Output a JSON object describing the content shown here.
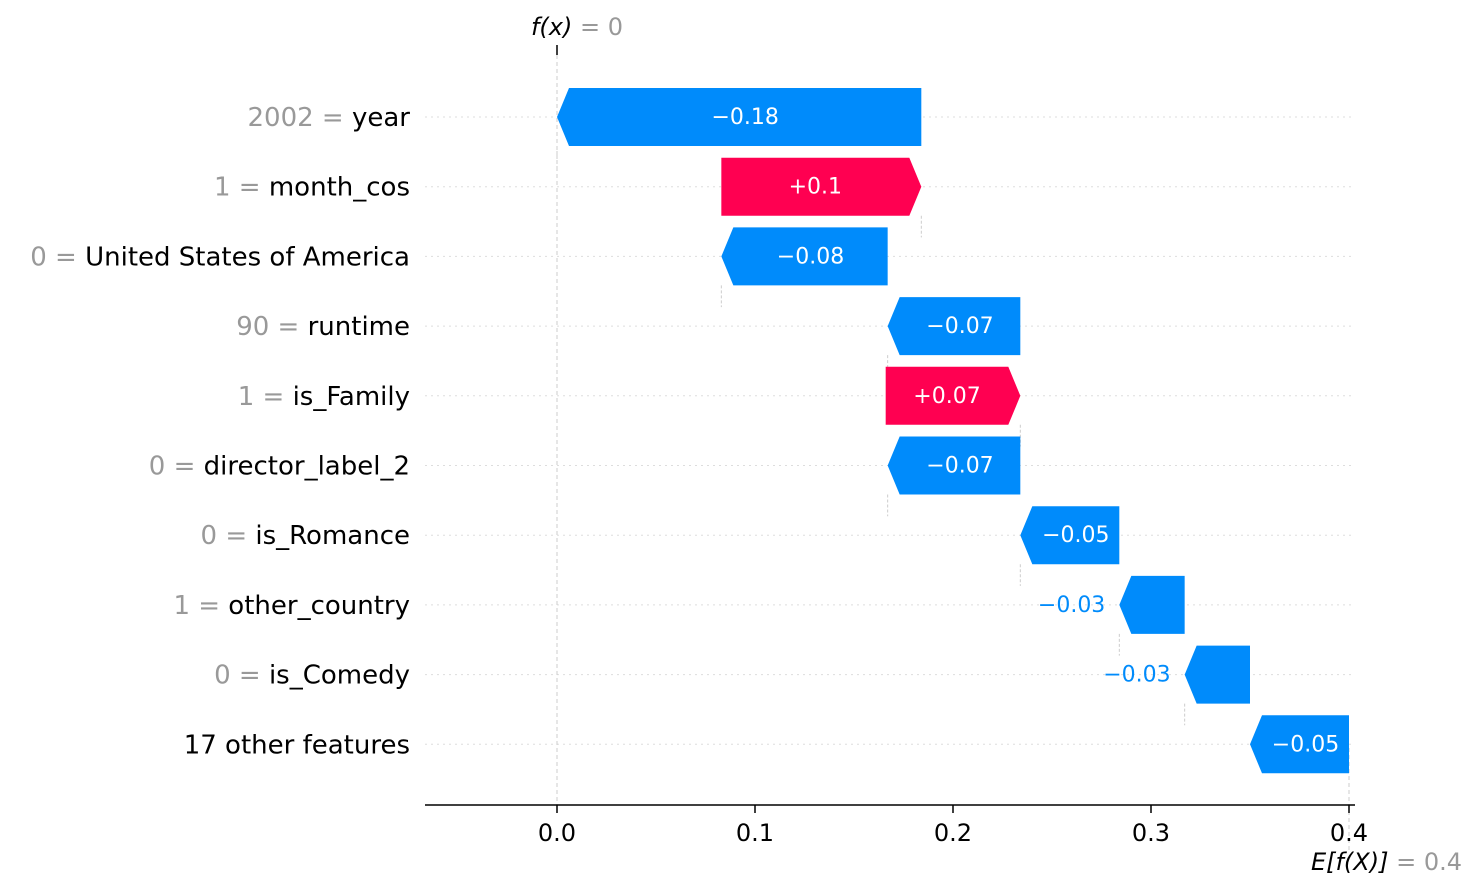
{
  "chart_data": {
    "type": "waterfall",
    "fx_label": "f(x)",
    "fx_value_text": "= 0",
    "fx_value": 0.0,
    "efx_label": "E[f(X)]",
    "efx_value_text": "= 0.4",
    "efx_value": 0.4,
    "x_ticks": [
      "0.0",
      "0.1",
      "0.2",
      "0.3",
      "0.4"
    ],
    "x_tick_values": [
      0.0,
      0.1,
      0.2,
      0.3,
      0.4
    ],
    "xlim": [
      -0.067,
      0.405
    ],
    "features": [
      {
        "value": "2002 =",
        "name": "year",
        "start": 0.184,
        "end": 0.0,
        "label": "−0.18"
      },
      {
        "value": "1 =",
        "name": "month_cos",
        "start": 0.083,
        "end": 0.184,
        "label": "+0.1"
      },
      {
        "value": "0 =",
        "name": "United States of America",
        "start": 0.167,
        "end": 0.083,
        "label": "−0.08"
      },
      {
        "value": "90 =",
        "name": "runtime",
        "start": 0.234,
        "end": 0.167,
        "label": "−0.07"
      },
      {
        "value": "1 =",
        "name": "is_Family",
        "start": 0.166,
        "end": 0.234,
        "label": "+0.07"
      },
      {
        "value": "0 =",
        "name": "director_label_2",
        "start": 0.234,
        "end": 0.167,
        "label": "−0.07"
      },
      {
        "value": "0 =",
        "name": "is_Romance",
        "start": 0.284,
        "end": 0.234,
        "label": "−0.05"
      },
      {
        "value": "1 =",
        "name": "other_country",
        "start": 0.317,
        "end": 0.284,
        "label": "−0.03"
      },
      {
        "value": "0 =",
        "name": "is_Comedy",
        "start": 0.35,
        "end": 0.317,
        "label": "−0.03"
      },
      {
        "value": "",
        "name": "17 other features",
        "start": 0.4,
        "end": 0.35,
        "label": "−0.05"
      }
    ],
    "colors": {
      "positive": "#ff0051",
      "negative": "#008bfb",
      "value_text": "#999999",
      "axis": "#000000",
      "grid": "#cccccc"
    }
  }
}
